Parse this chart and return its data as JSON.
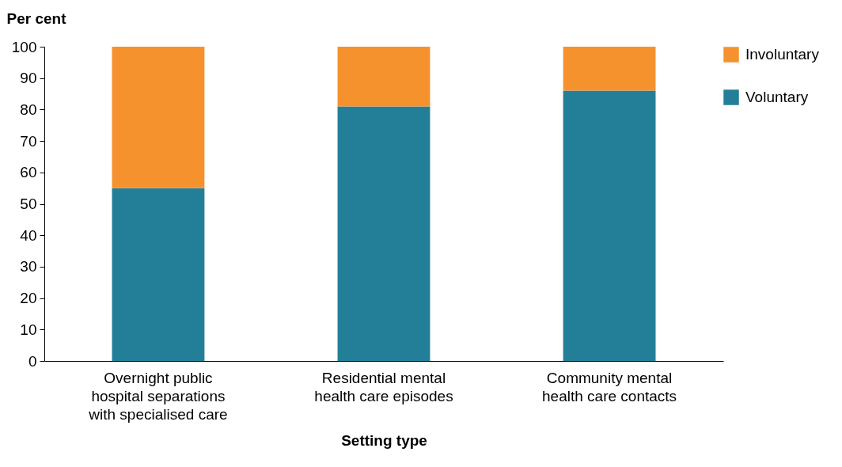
{
  "chart_data": {
    "type": "bar",
    "stacked": true,
    "ylabel": "Per cent",
    "xlabel": "Setting type",
    "categories": [
      "Overnight public hospital separations with specialised care",
      "Residential mental health care episodes",
      "Community mental health care contacts"
    ],
    "series": [
      {
        "name": "Voluntary",
        "color": "#237f97",
        "values": [
          55,
          81,
          86
        ]
      },
      {
        "name": "Involuntary",
        "color": "#f6922e",
        "values": [
          45,
          19,
          14
        ]
      }
    ],
    "ylim": [
      0,
      100
    ],
    "yticks": [
      0,
      10,
      20,
      30,
      40,
      50,
      60,
      70,
      80,
      90,
      100
    ],
    "grid": false,
    "legend": "right"
  }
}
